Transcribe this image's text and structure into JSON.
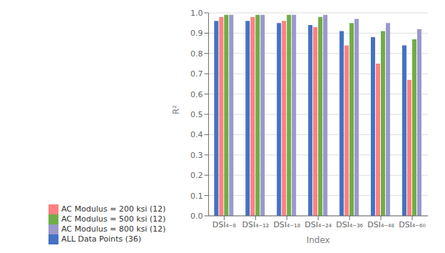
{
  "chart_data": {
    "type": "bar",
    "xlabel": "Index",
    "ylabel": "R²",
    "categories": [
      "DSI₄₋₈",
      "DSI₄₋₁₂",
      "DSI₄₋₁₈",
      "DSI₄₋₂₄",
      "DSI₄₋₃₆",
      "DSI₄₋₄₈",
      "DSI₄₋₆₀"
    ],
    "series": [
      {
        "name": "ALL Data Points (36)",
        "color": "#4472C4",
        "values": [
          0.96,
          0.96,
          0.95,
          0.94,
          0.91,
          0.88,
          0.84
        ]
      },
      {
        "name": "AC Modulus = 200 ksi (12)",
        "color": "#FF8080",
        "values": [
          0.98,
          0.98,
          0.96,
          0.93,
          0.84,
          0.75,
          0.67
        ]
      },
      {
        "name": "AC Modulus = 500 ksi (12)",
        "color": "#70AD47",
        "values": [
          0.99,
          0.99,
          0.99,
          0.98,
          0.95,
          0.91,
          0.87
        ]
      },
      {
        "name": "AC Modulus = 800 ksi (12)",
        "color": "#9999CC",
        "values": [
          0.99,
          0.99,
          0.99,
          0.99,
          0.97,
          0.95,
          0.92
        ]
      }
    ],
    "ylim": [
      0,
      1.0
    ],
    "yticks": [
      {
        "value": 0,
        "label": "0.0"
      },
      0.1,
      0.2,
      0.3,
      0.4,
      0.5,
      0.6,
      0.7,
      0.8,
      0.9,
      {
        "value": 1.0,
        "label": "1.0"
      }
    ],
    "grid": true,
    "legend": "bottom"
  }
}
